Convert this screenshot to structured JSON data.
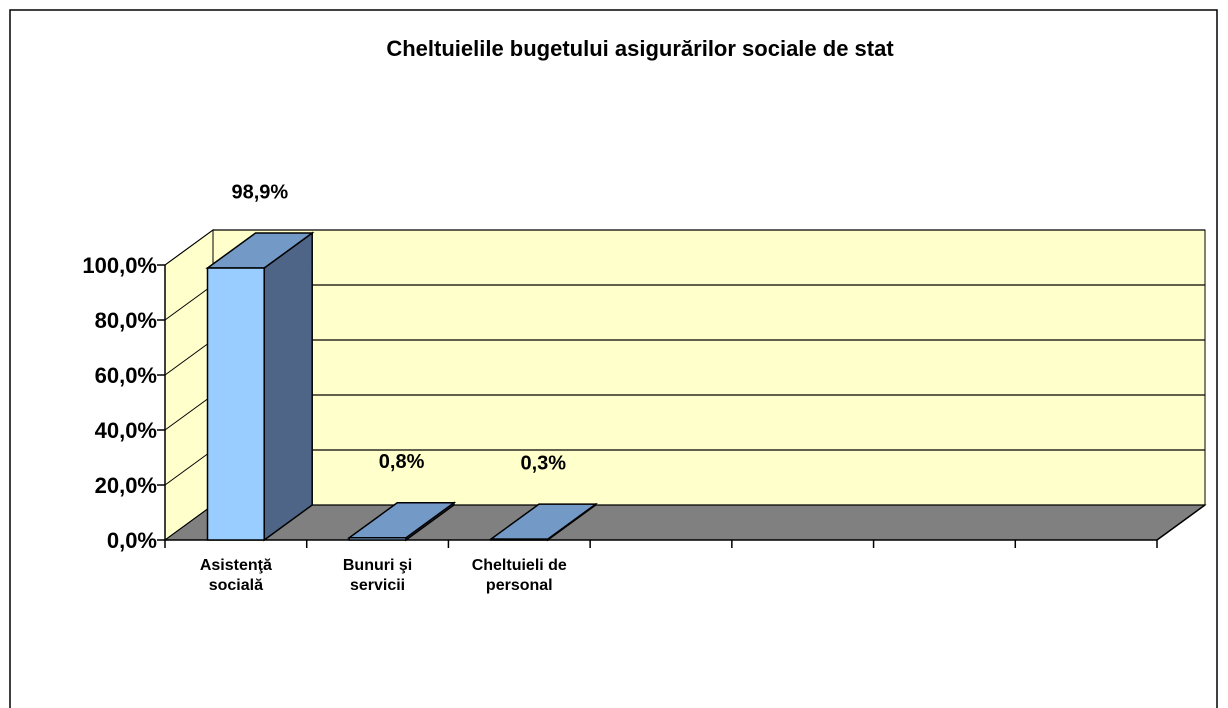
{
  "chart_data": {
    "type": "bar3d",
    "title": "Cheltuielile bugetului asigurărilor sociale de stat",
    "categories": [
      "Asistenţă socială",
      "Bunuri şi servicii",
      "Cheltuieli de personal",
      null,
      null,
      null,
      null
    ],
    "values": [
      98.9,
      0.8,
      0.3,
      null,
      null,
      null,
      null
    ],
    "value_labels": [
      "98,9%",
      "0,8%",
      "0,3%",
      null,
      null,
      null,
      null
    ],
    "color": "#99ccff",
    "ylim": [
      0,
      100
    ],
    "yticks": [
      {
        "value": 0,
        "label": "0,0%"
      },
      {
        "value": 20,
        "label": "20,0%"
      },
      {
        "value": 40,
        "label": "40,0%"
      },
      {
        "value": 60,
        "label": "60,0%"
      },
      {
        "value": 80,
        "label": "80,0%"
      },
      {
        "value": 100,
        "label": "100,0%"
      }
    ],
    "grid": true
  }
}
